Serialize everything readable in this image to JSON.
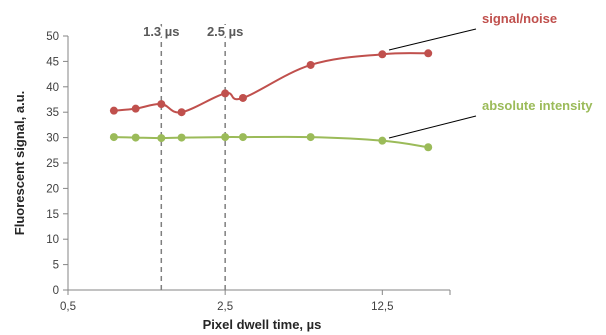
{
  "chart_data": {
    "type": "line",
    "xlabel": "Pixel dwell time, µs",
    "ylabel": "Fluorescent signal, a.u.",
    "x_scale": "log",
    "xlim": [
      0.5,
      25
    ],
    "ylim": [
      0,
      50
    ],
    "x_ticks": [
      {
        "value": 0.5,
        "label": "0,5"
      },
      {
        "value": 2.5,
        "label": "2,5"
      },
      {
        "value": 12.5,
        "label": "12,5"
      }
    ],
    "y_ticks": [
      0,
      5,
      10,
      15,
      20,
      25,
      30,
      35,
      40,
      45,
      50
    ],
    "grid": false,
    "vertical_lines": [
      {
        "x": 1.3,
        "label": "1.3 µs"
      },
      {
        "x": 2.5,
        "label": "2.5 µs"
      }
    ],
    "series": [
      {
        "name": "signal/noise",
        "color": "#c0504d",
        "x": [
          0.8,
          1.0,
          1.3,
          1.6,
          2.5,
          3.0,
          6.0,
          12.5,
          20.0
        ],
        "y": [
          35.3,
          35.7,
          36.6,
          35.0,
          38.7,
          37.8,
          44.3,
          46.4,
          46.6
        ]
      },
      {
        "name": "absolute intensity",
        "color": "#9bbb59",
        "x": [
          0.8,
          1.0,
          1.3,
          1.6,
          2.5,
          3.0,
          6.0,
          12.5,
          20.0
        ],
        "y": [
          30.1,
          30.0,
          29.9,
          30.0,
          30.1,
          30.1,
          30.1,
          29.4,
          28.1
        ]
      }
    ]
  }
}
